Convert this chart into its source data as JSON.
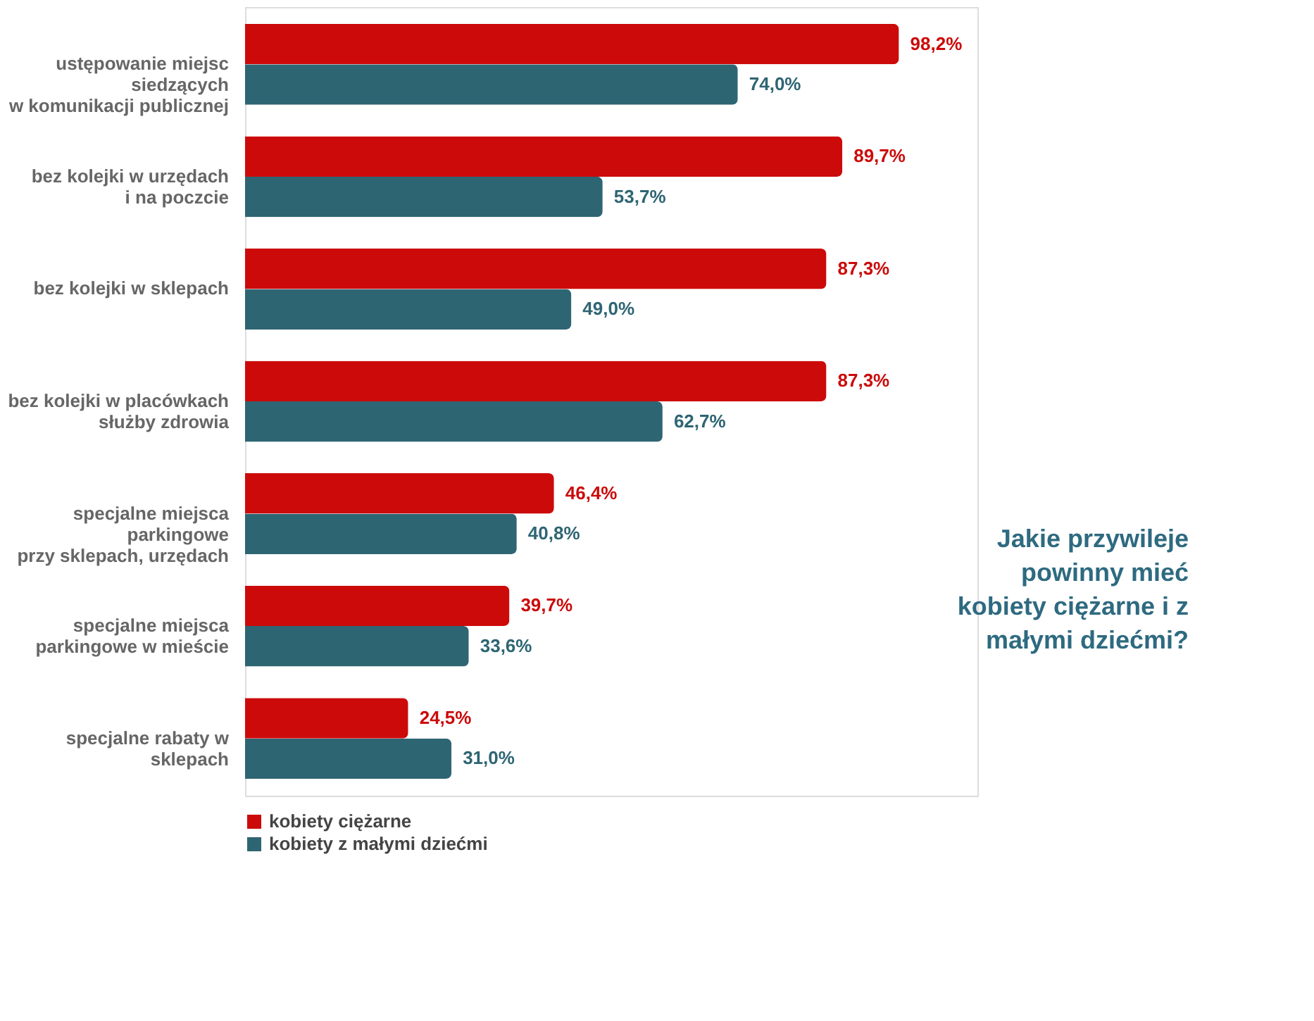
{
  "chart_data": {
    "type": "bar",
    "orientation": "horizontal",
    "title": [
      "Jakie przywileje",
      "powinny mieć",
      "kobiety ciężarne i z",
      "małymi dziećmi?"
    ],
    "categories": [
      "ustępowanie miejsc\nsiedzących\nw komunikacji publicznej",
      "bez kolejki w urzędach\ni na poczcie",
      "bez kolejki w sklepach",
      "bez kolejki w placówkach\nsłużby zdrowia",
      "specjalne miejsca\nparkingowe\nprzy sklepach, urzędach",
      "specjalne miejsca\nparkingowe w mieście",
      "specjalne rabaty w\nsklepach"
    ],
    "series": [
      {
        "name": "kobiety ciężarne",
        "color": "#cc0a0a",
        "values": [
          98.2,
          89.7,
          87.3,
          87.3,
          46.4,
          39.7,
          24.5
        ],
        "value_labels": [
          "98,2%",
          "89,7%",
          "87,3%",
          "87,3%",
          "46,4%",
          "39,7%",
          "24,5%"
        ]
      },
      {
        "name": "kobiety z małymi dziećmi",
        "color": "#2e6573",
        "values": [
          74.0,
          53.7,
          49.0,
          62.7,
          40.8,
          33.6,
          31.0
        ],
        "value_labels": [
          "74,0%",
          "53,7%",
          "49,0%",
          "62,7%",
          "40,8%",
          "33,6%",
          "31,0%"
        ]
      }
    ],
    "tick_labels": "y",
    "grid": false,
    "legend": "bottom left"
  }
}
